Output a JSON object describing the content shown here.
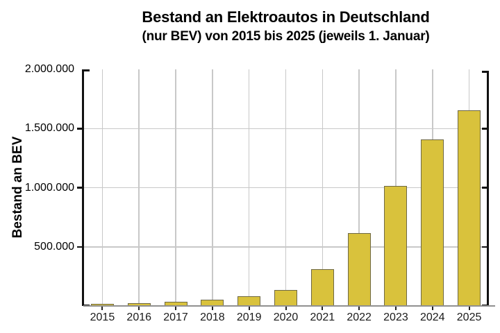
{
  "chart_data": {
    "type": "bar",
    "title": "Bestand an Elektroautos in Deutschland",
    "subtitle": "(nur BEV) von 2015 bis 2025 (jeweils 1. Januar)",
    "ylabel": "Bestand an BEV",
    "xlabel": "",
    "categories": [
      "2015",
      "2016",
      "2017",
      "2018",
      "2019",
      "2020",
      "2021",
      "2022",
      "2023",
      "2024",
      "2025"
    ],
    "values": [
      19000,
      25000,
      34000,
      54000,
      83000,
      137000,
      309000,
      618000,
      1013000,
      1409000,
      1652000
    ],
    "ylim": [
      0,
      2000000
    ],
    "ytick_values": [
      500000,
      1000000,
      1500000,
      2000000
    ],
    "ytick_labels": [
      "500.000",
      "1.000.000",
      "1.500.000",
      "2.000.000"
    ],
    "grid": true,
    "legend_position": "none",
    "colors": {
      "bar_fill": "#d9c23c",
      "bar_border": "#6e6845",
      "gridline": "#c8c8c8",
      "axis": "#111111",
      "baseline": "#909090",
      "x_tick": "#222222",
      "text": "#000000"
    }
  }
}
